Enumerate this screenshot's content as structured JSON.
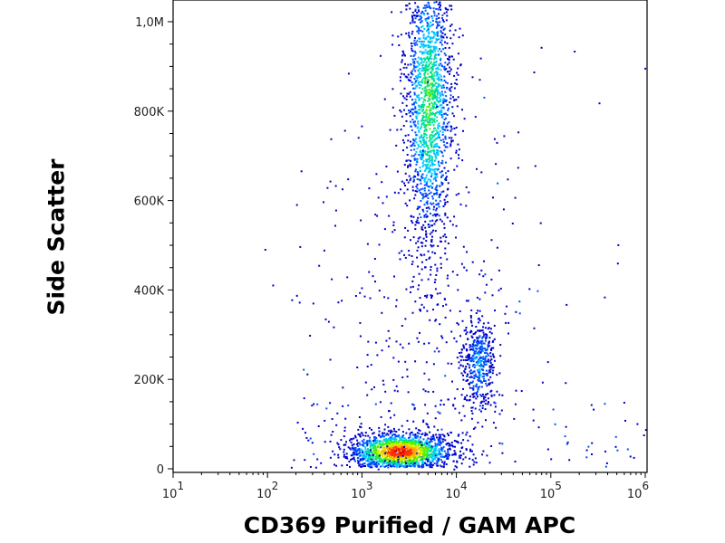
{
  "chart_data": {
    "type": "scatter",
    "subtype": "flow-cytometry-density-dot-plot",
    "xlabel": "CD369 Purified / GAM APC",
    "ylabel": "Side Scatter",
    "xscale": "log",
    "xlim": [
      10,
      1200000
    ],
    "ylim": [
      0,
      1050000
    ],
    "x_ticks": [
      {
        "value": 10,
        "base": "10",
        "exp": "1"
      },
      {
        "value": 100,
        "base": "10",
        "exp": "2"
      },
      {
        "value": 1000,
        "base": "10",
        "exp": "3"
      },
      {
        "value": 10000,
        "base": "10",
        "exp": "4"
      },
      {
        "value": 100000,
        "base": "10",
        "exp": "5"
      },
      {
        "value": 1000000,
        "base": "10",
        "exp": "6"
      }
    ],
    "y_ticks": [
      {
        "value": 0,
        "label": "0"
      },
      {
        "value": 200000,
        "label": "200K"
      },
      {
        "value": 400000,
        "label": "400K"
      },
      {
        "value": 600000,
        "label": "600K"
      },
      {
        "value": 800000,
        "label": "800K"
      },
      {
        "value": 1000000,
        "label": "1,0M"
      }
    ],
    "populations": [
      {
        "x_center": 2500,
        "x_log_sd": 0.28,
        "y_center": 35000,
        "y_sd": 22000,
        "count": 1600,
        "peak": "red"
      },
      {
        "x_center": 5000,
        "x_log_sd": 0.13,
        "y_center": 820000,
        "y_sd": 170000,
        "count": 1700,
        "peak": "green"
      },
      {
        "x_center": 17000,
        "x_log_sd": 0.09,
        "y_center": 240000,
        "y_sd": 55000,
        "count": 450,
        "peak": "cyan"
      },
      {
        "x_center": 4000,
        "x_log_sd": 0.55,
        "y_center": 300000,
        "y_sd": 250000,
        "count": 350,
        "peak": "blue"
      }
    ],
    "colormap": [
      "#0000c8",
      "#0050ff",
      "#00c8ff",
      "#00e08c",
      "#50f000",
      "#d8f000",
      "#ffb000",
      "#ff3000",
      "#d00000"
    ],
    "grid": false,
    "legend": "none"
  }
}
